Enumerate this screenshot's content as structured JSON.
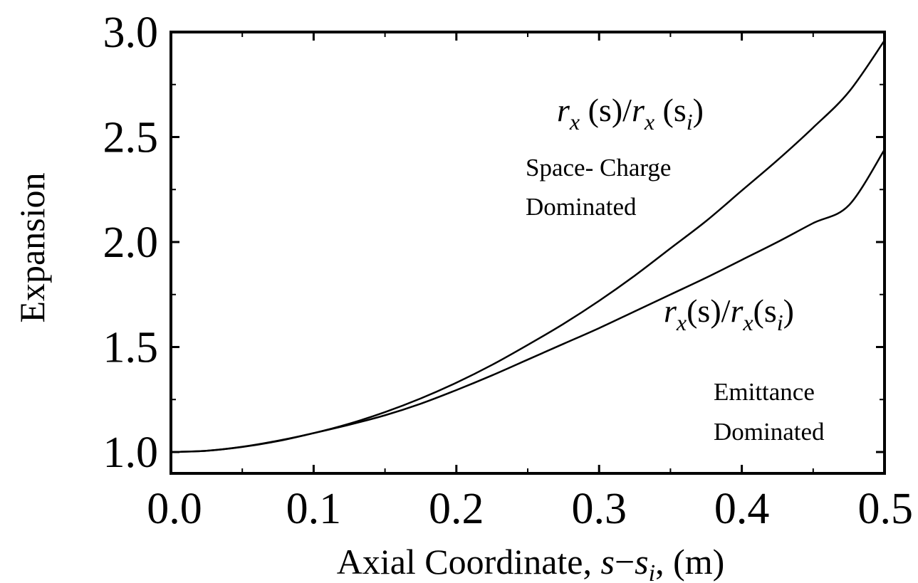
{
  "chart_data": {
    "type": "line",
    "title": "",
    "xlabel": {
      "prefix": "Axial Coordinate, ",
      "var_s": "s",
      "minus": "−",
      "var_s2": "s",
      "sub_i": "i",
      "suffix": ", (m)"
    },
    "ylabel": "Expansion",
    "xlim": [
      0.0,
      0.5
    ],
    "ylim": [
      1.0,
      3.0
    ],
    "x_ticks": [
      "0.0",
      "0.1",
      "0.2",
      "0.3",
      "0.4",
      "0.5"
    ],
    "x_tick_values": [
      0.0,
      0.1,
      0.2,
      0.3,
      0.4,
      0.5
    ],
    "y_ticks": [
      "1.0",
      "1.5",
      "2.0",
      "2.5",
      "3.0"
    ],
    "y_tick_values": [
      1.0,
      1.5,
      2.0,
      2.5,
      3.0
    ],
    "grid": false,
    "series": [
      {
        "x": [
          0.0,
          0.025,
          0.05,
          0.075,
          0.1,
          0.125,
          0.15,
          0.175,
          0.2,
          0.225,
          0.25,
          0.275,
          0.3,
          0.325,
          0.35,
          0.375,
          0.4,
          0.425,
          0.45,
          0.475,
          0.5
        ],
        "values": [
          1.0,
          1.006,
          1.025,
          1.054,
          1.09,
          1.135,
          1.19,
          1.255,
          1.33,
          1.415,
          1.51,
          1.61,
          1.72,
          1.84,
          1.97,
          2.1,
          2.245,
          2.39,
          2.545,
          2.715,
          2.96
        ]
      },
      {
        "x": [
          0.0,
          0.025,
          0.05,
          0.075,
          0.1,
          0.125,
          0.15,
          0.175,
          0.2,
          0.225,
          0.25,
          0.275,
          0.3,
          0.325,
          0.35,
          0.375,
          0.4,
          0.425,
          0.45,
          0.475,
          0.5
        ],
        "values": [
          1.0,
          1.006,
          1.024,
          1.052,
          1.09,
          1.13,
          1.175,
          1.23,
          1.295,
          1.365,
          1.44,
          1.515,
          1.59,
          1.67,
          1.75,
          1.83,
          1.915,
          2.0,
          2.09,
          2.175,
          2.44
        ]
      }
    ],
    "annotations": {
      "upper_curve_label": {
        "r": "r",
        "sub": "x",
        "mid": " (s)/",
        "r2": "r",
        "sub2": "x",
        "open": " (s",
        "sub3": "i",
        "close": ")"
      },
      "upper_region_line1": "Space- Charge",
      "upper_region_line2": "Dominated",
      "lower_curve_label": {
        "r": "r",
        "sub": "x",
        "mid": "(s)/",
        "r2": "r",
        "sub2": "x",
        "open": "(s",
        "sub3": "i",
        "close": ")"
      },
      "lower_region_line1": "Emittance",
      "lower_region_line2": "Dominated"
    },
    "colors": {
      "line": "#000000",
      "axes": "#000000",
      "background": "#ffffff"
    }
  }
}
